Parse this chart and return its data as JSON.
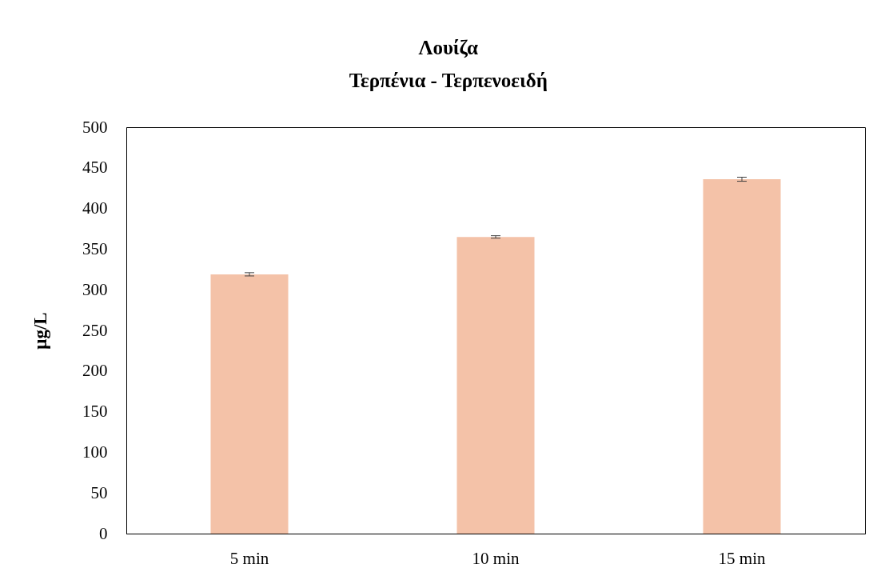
{
  "chart_data": {
    "type": "bar",
    "title": "Λουίζα",
    "subtitle": "Τερπένια - Τερπενοειδή",
    "ylabel": "μg/L",
    "categories": [
      "5 min",
      "10 min",
      "15 min"
    ],
    "values": [
      319,
      365,
      436
    ],
    "errors": [
      2,
      1.5,
      2.5
    ],
    "color": "#f4c2a8",
    "ylim": [
      0,
      500
    ],
    "yticks": [
      0,
      50,
      100,
      150,
      200,
      250,
      300,
      350,
      400,
      450,
      500
    ],
    "grid": false
  }
}
